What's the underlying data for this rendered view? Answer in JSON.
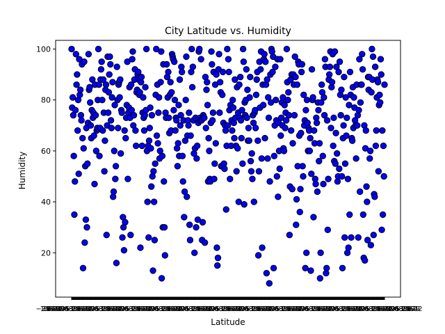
{
  "chart_data": {
    "type": "scatter",
    "title": "City Latitude vs. Humidity",
    "xlabel": "Latitude",
    "ylabel": "Humidity",
    "ylim": [
      2.6,
      103.4
    ],
    "yticks": [
      20,
      40,
      60,
      80,
      100
    ],
    "x_categorical": true,
    "x_tick_labels_note_free": true,
    "grid": false,
    "legend": "none",
    "colors": {
      "marker_fill": "#0000ff",
      "marker_edge": "#000000"
    },
    "humidity": [
      100,
      77,
      81,
      74,
      58,
      35,
      48,
      76,
      98,
      86,
      90,
      68,
      80,
      51,
      96,
      82,
      84,
      74,
      72,
      94,
      65,
      14,
      61,
      95,
      24,
      54,
      33,
      69,
      30,
      55,
      71,
      98,
      84,
      85,
      79,
      70,
      65,
      76,
      88,
      73,
      75,
      66,
      47,
      86,
      74,
      60,
      68,
      69,
      80,
      100,
      86,
      58,
      69,
      88,
      92,
      95,
      80,
      68,
      88,
      75,
      52,
      64,
      84,
      86,
      27,
      70,
      97,
      75,
      83,
      90,
      97,
      94,
      72,
      69,
      81,
      87,
      42,
      44,
      60,
      78,
      49,
      54,
      16,
      93,
      80,
      69,
      86,
      87,
      81,
      88,
      59,
      76,
      75,
      26,
      34,
      30,
      21,
      68,
      32,
      65,
      73,
      78,
      95,
      49,
      75,
      77,
      85,
      73,
      27,
      86,
      76,
      96,
      99,
      70,
      74,
      88,
      92,
      68,
      62,
      83,
      84,
      90,
      91,
      88,
      82,
      83,
      22,
      87,
      89,
      62,
      75,
      81,
      73,
      68,
      74,
      85,
      76,
      100,
      60,
      40,
      62,
      26,
      64,
      69,
      77,
      61,
      46,
      74,
      50,
      13,
      52,
      40,
      25,
      55,
      82,
      100,
      66,
      86,
      63,
      75,
      81,
      57,
      60,
      87,
      99,
      10,
      58,
      30,
      94,
      48,
      30,
      19,
      75,
      73,
      94,
      89,
      81,
      91,
      73,
      67,
      82,
      87,
      68,
      83,
      98,
      97,
      96,
      76,
      95,
      80,
      68,
      73,
      72,
      61,
      54,
      63,
      78,
      58,
      88,
      70,
      74,
      93,
      91,
      58,
      48,
      72,
      34,
      44,
      64,
      80,
      97,
      42,
      66,
      72,
      70,
      75,
      31,
      25,
      66,
      91,
      100,
      85,
      93,
      72,
      59,
      20,
      61,
      73,
      30,
      57,
      62,
      33,
      71,
      99,
      100,
      73,
      72,
      96,
      72,
      25,
      32,
      74,
      73,
      73,
      24,
      89,
      69,
      84,
      87,
      78,
      48,
      65,
      60,
      49,
      48,
      71,
      99,
      94,
      72,
      75,
      91,
      49,
      55,
      86,
      63,
      90,
      22,
      15,
      18,
      92,
      98,
      75,
      87,
      83,
      54,
      54,
      82,
      91,
      71,
      55,
      53,
      70,
      68,
      37,
      62,
      100,
      70,
      96,
      91,
      76,
      49,
      78,
      62,
      72,
      68,
      80,
      77,
      71,
      65,
      88,
      73,
      62,
      52,
      85,
      61,
      75,
      40,
      86,
      73,
      89,
      72,
      65,
      76,
      55,
      100,
      95,
      39,
      79,
      74,
      80,
      92,
      73,
      84,
      64,
      69,
      64,
      81,
      89,
      56,
      52,
      59,
      49,
      74,
      71,
      40,
      75,
      76,
      69,
      82,
      88,
      91,
      64,
      19,
      52,
      95,
      77,
      92,
      99,
      57,
      22,
      86,
      78,
      96,
      98,
      65,
      95,
      86,
      12,
      88,
      57,
      81,
      73,
      8,
      48,
      90,
      79,
      100,
      99,
      91,
      97,
      14,
      58,
      70,
      93,
      80,
      72,
      50,
      96,
      42,
      71,
      60,
      53,
      96,
      66,
      73,
      79,
      70,
      81,
      61,
      60,
      78,
      69,
      75,
      72,
      100,
      87,
      80,
      83,
      74,
      27,
      46,
      88,
      68,
      90,
      45,
      63,
      90,
      86,
      74,
      97,
      89,
      31,
      41,
      86,
      54,
      95,
      94,
      66,
      36,
      45,
      67,
      91,
      94,
      54,
      50,
      82,
      70,
      72,
      14,
      76,
      20,
      80,
      71,
      60,
      69,
      68,
      60,
      65,
      13,
      51,
      92,
      80,
      81,
      34,
      68,
      63,
      49,
      47,
      73,
      71,
      44,
      79,
      76,
      56,
      63,
      10,
      20,
      79,
      86,
      83,
      58,
      47,
      81,
      74,
      96,
      93,
      12,
      14,
      72,
      29,
      49,
      88,
      90,
      93,
      99,
      69,
      85,
      87,
      98,
      62,
      73,
      56,
      99,
      55,
      67,
      93,
      59,
      48,
      50,
      91,
      53,
      95,
      82,
      74,
      84,
      50,
      14,
      65,
      70,
      89,
      26,
      55,
      81,
      66,
      73,
      20,
      49,
      22,
      78,
      35,
      91,
      82,
      26,
      65,
      64,
      85,
      69,
      81,
      77,
      72,
      70,
      57,
      86,
      70,
      74,
      26,
      76,
      96,
      44,
      79,
      86,
      86,
      98,
      92,
      35,
      18,
      70,
      17,
      61,
      68,
      46,
      40,
      25,
      89,
      84,
      89,
      57,
      60,
      23,
      83,
      100,
      88,
      97,
      27,
      43,
      42,
      93,
      62,
      68,
      81,
      88,
      87,
      52,
      78,
      82,
      79,
      96,
      90,
      29,
      68,
      35,
      62,
      50,
      86
    ]
  }
}
